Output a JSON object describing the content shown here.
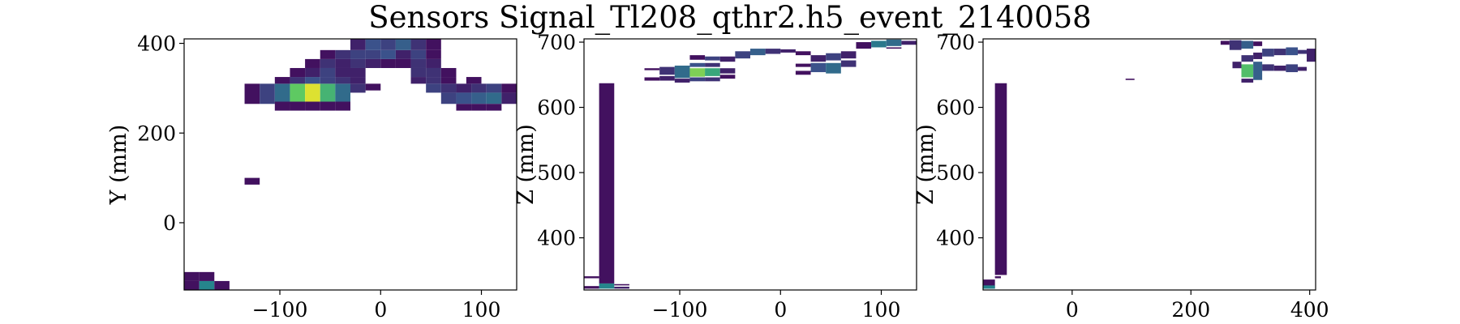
{
  "figure_title": "Sensors Signal_Tl208_qthr2.h5_event_2140058",
  "colormap": [
    "#440154",
    "#3b528b",
    "#21918c",
    "#5ec962",
    "#fde725"
  ],
  "chart_data": [
    {
      "type": "heatmap",
      "title": "",
      "xlabel": "",
      "ylabel": "Y (mm)",
      "xlim": [
        -195,
        135
      ],
      "ylim": [
        -150,
        410
      ],
      "xticks": [
        -100,
        0,
        100
      ],
      "yticks": [
        0,
        200,
        400
      ],
      "xtick_labels": [
        "−100",
        "0",
        "100"
      ],
      "ytick_labels": [
        "0",
        "200",
        "400"
      ],
      "cells": [
        {
          "x0": -195,
          "x1": -180,
          "y0": -150,
          "y1": -130,
          "v": 0.05
        },
        {
          "x0": -180,
          "x1": -165,
          "y0": -150,
          "y1": -130,
          "v": 0.45
        },
        {
          "x0": -165,
          "x1": -150,
          "y0": -150,
          "y1": -130,
          "v": 0.05
        },
        {
          "x0": -195,
          "x1": -180,
          "y0": -130,
          "y1": -110,
          "v": 0.05
        },
        {
          "x0": -180,
          "x1": -165,
          "y0": -130,
          "y1": -110,
          "v": 0.05
        },
        {
          "x0": -135,
          "x1": -120,
          "y0": 85,
          "y1": 100,
          "v": 0.05
        },
        {
          "x0": -135,
          "x1": -120,
          "y0": 265,
          "y1": 310,
          "v": 0.05
        },
        {
          "x0": -120,
          "x1": -105,
          "y0": 265,
          "y1": 310,
          "v": 0.2
        },
        {
          "x0": -105,
          "x1": -90,
          "y0": 265,
          "y1": 310,
          "v": 0.35
        },
        {
          "x0": -90,
          "x1": -75,
          "y0": 270,
          "y1": 310,
          "v": 0.75
        },
        {
          "x0": -75,
          "x1": -60,
          "y0": 270,
          "y1": 310,
          "v": 0.95
        },
        {
          "x0": -60,
          "x1": -45,
          "y0": 270,
          "y1": 310,
          "v": 0.65
        },
        {
          "x0": -45,
          "x1": -30,
          "y0": 270,
          "y1": 310,
          "v": 0.35
        },
        {
          "x0": -30,
          "x1": -15,
          "y0": 290,
          "y1": 310,
          "v": 0.15
        },
        {
          "x0": -105,
          "x1": -90,
          "y0": 250,
          "y1": 270,
          "v": 0.05
        },
        {
          "x0": -90,
          "x1": -75,
          "y0": 250,
          "y1": 270,
          "v": 0.05
        },
        {
          "x0": -75,
          "x1": -60,
          "y0": 250,
          "y1": 270,
          "v": 0.05
        },
        {
          "x0": -60,
          "x1": -45,
          "y0": 250,
          "y1": 270,
          "v": 0.05
        },
        {
          "x0": -45,
          "x1": -30,
          "y0": 250,
          "y1": 270,
          "v": 0.05
        },
        {
          "x0": -105,
          "x1": -90,
          "y0": 310,
          "y1": 325,
          "v": 0.05
        },
        {
          "x0": -90,
          "x1": -75,
          "y0": 310,
          "y1": 325,
          "v": 0.15
        },
        {
          "x0": -75,
          "x1": -60,
          "y0": 310,
          "y1": 325,
          "v": 0.25
        },
        {
          "x0": -60,
          "x1": -45,
          "y0": 310,
          "y1": 325,
          "v": 0.2
        },
        {
          "x0": -45,
          "x1": -30,
          "y0": 310,
          "y1": 325,
          "v": 0.15
        },
        {
          "x0": -30,
          "x1": -15,
          "y0": 310,
          "y1": 325,
          "v": 0.1
        },
        {
          "x0": -15,
          "x1": 0,
          "y0": 295,
          "y1": 310,
          "v": 0.05
        },
        {
          "x0": -90,
          "x1": -75,
          "y0": 325,
          "y1": 345,
          "v": 0.05
        },
        {
          "x0": -75,
          "x1": -60,
          "y0": 325,
          "y1": 345,
          "v": 0.1
        },
        {
          "x0": -60,
          "x1": -45,
          "y0": 325,
          "y1": 345,
          "v": 0.2
        },
        {
          "x0": -45,
          "x1": -30,
          "y0": 325,
          "y1": 345,
          "v": 0.1
        },
        {
          "x0": -30,
          "x1": -15,
          "y0": 325,
          "y1": 345,
          "v": 0.1
        },
        {
          "x0": -75,
          "x1": -60,
          "y0": 345,
          "y1": 365,
          "v": 0.05
        },
        {
          "x0": -60,
          "x1": -45,
          "y0": 345,
          "y1": 365,
          "v": 0.15
        },
        {
          "x0": -45,
          "x1": -30,
          "y0": 345,
          "y1": 365,
          "v": 0.1
        },
        {
          "x0": -30,
          "x1": -15,
          "y0": 345,
          "y1": 365,
          "v": 0.15
        },
        {
          "x0": -15,
          "x1": 0,
          "y0": 345,
          "y1": 365,
          "v": 0.1
        },
        {
          "x0": 0,
          "x1": 15,
          "y0": 345,
          "y1": 365,
          "v": 0.05
        },
        {
          "x0": 15,
          "x1": 30,
          "y0": 345,
          "y1": 365,
          "v": 0.05
        },
        {
          "x0": -60,
          "x1": -45,
          "y0": 365,
          "y1": 385,
          "v": 0.05
        },
        {
          "x0": -45,
          "x1": -30,
          "y0": 365,
          "y1": 385,
          "v": 0.15
        },
        {
          "x0": -30,
          "x1": -15,
          "y0": 365,
          "y1": 385,
          "v": 0.2
        },
        {
          "x0": -15,
          "x1": 0,
          "y0": 365,
          "y1": 385,
          "v": 0.2
        },
        {
          "x0": 0,
          "x1": 15,
          "y0": 365,
          "y1": 385,
          "v": 0.25
        },
        {
          "x0": 15,
          "x1": 30,
          "y0": 365,
          "y1": 385,
          "v": 0.1
        },
        {
          "x0": 30,
          "x1": 45,
          "y0": 365,
          "y1": 385,
          "v": 0.2
        },
        {
          "x0": 45,
          "x1": 60,
          "y0": 365,
          "y1": 385,
          "v": 0.05
        },
        {
          "x0": -30,
          "x1": -15,
          "y0": 385,
          "y1": 410,
          "v": 0.1
        },
        {
          "x0": -15,
          "x1": 0,
          "y0": 385,
          "y1": 410,
          "v": 0.25
        },
        {
          "x0": 0,
          "x1": 15,
          "y0": 385,
          "y1": 410,
          "v": 0.2
        },
        {
          "x0": 15,
          "x1": 30,
          "y0": 385,
          "y1": 410,
          "v": 0.3
        },
        {
          "x0": 30,
          "x1": 45,
          "y0": 385,
          "y1": 410,
          "v": 0.15
        },
        {
          "x0": 45,
          "x1": 60,
          "y0": 385,
          "y1": 410,
          "v": 0.05
        },
        {
          "x0": 30,
          "x1": 45,
          "y0": 345,
          "y1": 365,
          "v": 0.15
        },
        {
          "x0": 45,
          "x1": 60,
          "y0": 345,
          "y1": 365,
          "v": 0.1
        },
        {
          "x0": 30,
          "x1": 45,
          "y0": 325,
          "y1": 345,
          "v": 0.15
        },
        {
          "x0": 45,
          "x1": 60,
          "y0": 325,
          "y1": 345,
          "v": 0.15
        },
        {
          "x0": 60,
          "x1": 75,
          "y0": 325,
          "y1": 345,
          "v": 0.05
        },
        {
          "x0": 30,
          "x1": 45,
          "y0": 310,
          "y1": 325,
          "v": 0.1
        },
        {
          "x0": 45,
          "x1": 60,
          "y0": 310,
          "y1": 325,
          "v": 0.15
        },
        {
          "x0": 60,
          "x1": 75,
          "y0": 310,
          "y1": 325,
          "v": 0.05
        },
        {
          "x0": 85,
          "x1": 100,
          "y0": 310,
          "y1": 325,
          "v": 0.05
        },
        {
          "x0": 45,
          "x1": 60,
          "y0": 290,
          "y1": 310,
          "v": 0.2
        },
        {
          "x0": 60,
          "x1": 75,
          "y0": 290,
          "y1": 310,
          "v": 0.15
        },
        {
          "x0": 75,
          "x1": 90,
          "y0": 290,
          "y1": 310,
          "v": 0.1
        },
        {
          "x0": 90,
          "x1": 105,
          "y0": 290,
          "y1": 310,
          "v": 0.15
        },
        {
          "x0": 105,
          "x1": 120,
          "y0": 290,
          "y1": 310,
          "v": 0.2
        },
        {
          "x0": 120,
          "x1": 135,
          "y0": 290,
          "y1": 310,
          "v": 0.05
        },
        {
          "x0": 60,
          "x1": 75,
          "y0": 265,
          "y1": 290,
          "v": 0.2
        },
        {
          "x0": 75,
          "x1": 90,
          "y0": 265,
          "y1": 290,
          "v": 0.25
        },
        {
          "x0": 90,
          "x1": 105,
          "y0": 265,
          "y1": 290,
          "v": 0.3
        },
        {
          "x0": 105,
          "x1": 120,
          "y0": 265,
          "y1": 290,
          "v": 0.35
        },
        {
          "x0": 120,
          "x1": 135,
          "y0": 265,
          "y1": 290,
          "v": 0.1
        },
        {
          "x0": 75,
          "x1": 90,
          "y0": 250,
          "y1": 265,
          "v": 0.05
        },
        {
          "x0": 90,
          "x1": 105,
          "y0": 250,
          "y1": 265,
          "v": 0.05
        },
        {
          "x0": 105,
          "x1": 120,
          "y0": 250,
          "y1": 265,
          "v": 0.05
        }
      ]
    },
    {
      "type": "heatmap",
      "title": "",
      "xlabel": "",
      "ylabel": "Z (mm)",
      "xlim": [
        -195,
        135
      ],
      "ylim": [
        320,
        705
      ],
      "xticks": [
        -100,
        0,
        100
      ],
      "yticks": [
        400,
        500,
        600,
        700
      ],
      "xtick_labels": [
        "−100",
        "0",
        "100"
      ],
      "ytick_labels": [
        "400",
        "500",
        "600",
        "700"
      ],
      "cells": [
        {
          "x0": -180,
          "x1": -165,
          "y0": 330,
          "y1": 637,
          "v": 0.05
        },
        {
          "x0": -180,
          "x1": -165,
          "y0": 322,
          "y1": 330,
          "v": 0.45
        },
        {
          "x0": -195,
          "x1": -180,
          "y0": 322,
          "y1": 326,
          "v": 0.05
        },
        {
          "x0": -195,
          "x1": -180,
          "y0": 338,
          "y1": 341,
          "v": 0.05
        },
        {
          "x0": -165,
          "x1": -150,
          "y0": 322,
          "y1": 325,
          "v": 0.1
        },
        {
          "x0": -165,
          "x1": -150,
          "y0": 327,
          "y1": 329,
          "v": 0.05
        },
        {
          "x0": -135,
          "x1": -120,
          "y0": 641,
          "y1": 646,
          "v": 0.05
        },
        {
          "x0": -135,
          "x1": -120,
          "y0": 657,
          "y1": 660,
          "v": 0.05
        },
        {
          "x0": -120,
          "x1": -105,
          "y0": 641,
          "y1": 648,
          "v": 0.1
        },
        {
          "x0": -120,
          "x1": -105,
          "y0": 650,
          "y1": 662,
          "v": 0.15
        },
        {
          "x0": -105,
          "x1": -90,
          "y0": 638,
          "y1": 644,
          "v": 0.1
        },
        {
          "x0": -105,
          "x1": -90,
          "y0": 645,
          "y1": 664,
          "v": 0.35
        },
        {
          "x0": -90,
          "x1": -75,
          "y0": 640,
          "y1": 646,
          "v": 0.2
        },
        {
          "x0": -90,
          "x1": -75,
          "y0": 647,
          "y1": 660,
          "v": 0.8
        },
        {
          "x0": -90,
          "x1": -75,
          "y0": 662,
          "y1": 668,
          "v": 0.25
        },
        {
          "x0": -75,
          "x1": -60,
          "y0": 640,
          "y1": 646,
          "v": 0.15
        },
        {
          "x0": -75,
          "x1": -60,
          "y0": 648,
          "y1": 660,
          "v": 0.6
        },
        {
          "x0": -75,
          "x1": -60,
          "y0": 662,
          "y1": 668,
          "v": 0.15
        },
        {
          "x0": -60,
          "x1": -45,
          "y0": 644,
          "y1": 650,
          "v": 0.05
        },
        {
          "x0": -60,
          "x1": -45,
          "y0": 652,
          "y1": 660,
          "v": 0.1
        },
        {
          "x0": -90,
          "x1": -75,
          "y0": 673,
          "y1": 680,
          "v": 0.05
        },
        {
          "x0": -75,
          "x1": -60,
          "y0": 672,
          "y1": 678,
          "v": 0.2
        },
        {
          "x0": -60,
          "x1": -45,
          "y0": 670,
          "y1": 678,
          "v": 0.1
        },
        {
          "x0": -45,
          "x1": -30,
          "y0": 675,
          "y1": 686,
          "v": 0.2
        },
        {
          "x0": -30,
          "x1": -15,
          "y0": 680,
          "y1": 690,
          "v": 0.3
        },
        {
          "x0": -15,
          "x1": 0,
          "y0": 682,
          "y1": 690,
          "v": 0.15
        },
        {
          "x0": 0,
          "x1": 15,
          "y0": 684,
          "y1": 689,
          "v": 0.1
        },
        {
          "x0": 15,
          "x1": 30,
          "y0": 680,
          "y1": 686,
          "v": 0.05
        },
        {
          "x0": 15,
          "x1": 30,
          "y0": 662,
          "y1": 667,
          "v": 0.05
        },
        {
          "x0": 15,
          "x1": 30,
          "y0": 650,
          "y1": 656,
          "v": 0.05
        },
        {
          "x0": 30,
          "x1": 45,
          "y0": 654,
          "y1": 668,
          "v": 0.25
        },
        {
          "x0": 45,
          "x1": 60,
          "y0": 652,
          "y1": 668,
          "v": 0.35
        },
        {
          "x0": 60,
          "x1": 75,
          "y0": 662,
          "y1": 672,
          "v": 0.15
        },
        {
          "x0": 30,
          "x1": 45,
          "y0": 670,
          "y1": 680,
          "v": 0.1
        },
        {
          "x0": 45,
          "x1": 60,
          "y0": 672,
          "y1": 683,
          "v": 0.2
        },
        {
          "x0": 60,
          "x1": 75,
          "y0": 675,
          "y1": 686,
          "v": 0.1
        },
        {
          "x0": 75,
          "x1": 90,
          "y0": 690,
          "y1": 700,
          "v": 0.05
        },
        {
          "x0": 90,
          "x1": 105,
          "y0": 692,
          "y1": 702,
          "v": 0.4
        },
        {
          "x0": 105,
          "x1": 120,
          "y0": 694,
          "y1": 704,
          "v": 0.35
        },
        {
          "x0": 120,
          "x1": 135,
          "y0": 696,
          "y1": 702,
          "v": 0.1
        },
        {
          "x0": 105,
          "x1": 120,
          "y0": 690,
          "y1": 692,
          "v": 0.05
        }
      ]
    },
    {
      "type": "heatmap",
      "title": "",
      "xlabel": "",
      "ylabel": "Z (mm)",
      "xlim": [
        -150,
        410
      ],
      "ylim": [
        320,
        705
      ],
      "xticks": [
        0,
        200,
        400
      ],
      "yticks": [
        400,
        500,
        600,
        700
      ],
      "xtick_labels": [
        "0",
        "200",
        "400"
      ],
      "ytick_labels": [
        "400",
        "500",
        "600",
        "700"
      ],
      "cells": [
        {
          "x0": -130,
          "x1": -110,
          "y0": 343,
          "y1": 637,
          "v": 0.05
        },
        {
          "x0": -150,
          "x1": -130,
          "y0": 322,
          "y1": 336,
          "v": 0.05
        },
        {
          "x0": -150,
          "x1": -130,
          "y0": 322,
          "y1": 327,
          "v": 0.45
        },
        {
          "x0": -130,
          "x1": -120,
          "y0": 338,
          "y1": 341,
          "v": 0.05
        },
        {
          "x0": 90,
          "x1": 105,
          "y0": 642,
          "y1": 644,
          "v": 0.05
        },
        {
          "x0": 250,
          "x1": 265,
          "y0": 696,
          "y1": 702,
          "v": 0.05
        },
        {
          "x0": 265,
          "x1": 285,
          "y0": 688,
          "y1": 703,
          "v": 0.15
        },
        {
          "x0": 285,
          "x1": 305,
          "y0": 690,
          "y1": 702,
          "v": 0.3
        },
        {
          "x0": 305,
          "x1": 320,
          "y0": 694,
          "y1": 701,
          "v": 0.05
        },
        {
          "x0": 270,
          "x1": 285,
          "y0": 660,
          "y1": 670,
          "v": 0.1
        },
        {
          "x0": 285,
          "x1": 305,
          "y0": 646,
          "y1": 666,
          "v": 0.7
        },
        {
          "x0": 305,
          "x1": 320,
          "y0": 642,
          "y1": 670,
          "v": 0.3
        },
        {
          "x0": 320,
          "x1": 340,
          "y0": 656,
          "y1": 666,
          "v": 0.15
        },
        {
          "x0": 340,
          "x1": 360,
          "y0": 656,
          "y1": 664,
          "v": 0.1
        },
        {
          "x0": 360,
          "x1": 380,
          "y0": 654,
          "y1": 666,
          "v": 0.2
        },
        {
          "x0": 380,
          "x1": 395,
          "y0": 656,
          "y1": 662,
          "v": 0.1
        },
        {
          "x0": 285,
          "x1": 305,
          "y0": 670,
          "y1": 680,
          "v": 0.15
        },
        {
          "x0": 305,
          "x1": 320,
          "y0": 674,
          "y1": 684,
          "v": 0.1
        },
        {
          "x0": 320,
          "x1": 340,
          "y0": 678,
          "y1": 690,
          "v": 0.2
        },
        {
          "x0": 340,
          "x1": 360,
          "y0": 680,
          "y1": 690,
          "v": 0.15
        },
        {
          "x0": 360,
          "x1": 380,
          "y0": 680,
          "y1": 692,
          "v": 0.25
        },
        {
          "x0": 380,
          "x1": 395,
          "y0": 682,
          "y1": 688,
          "v": 0.15
        },
        {
          "x0": 395,
          "x1": 410,
          "y0": 670,
          "y1": 690,
          "v": 0.1
        },
        {
          "x0": 285,
          "x1": 305,
          "y0": 638,
          "y1": 644,
          "v": 0.1
        }
      ]
    }
  ]
}
